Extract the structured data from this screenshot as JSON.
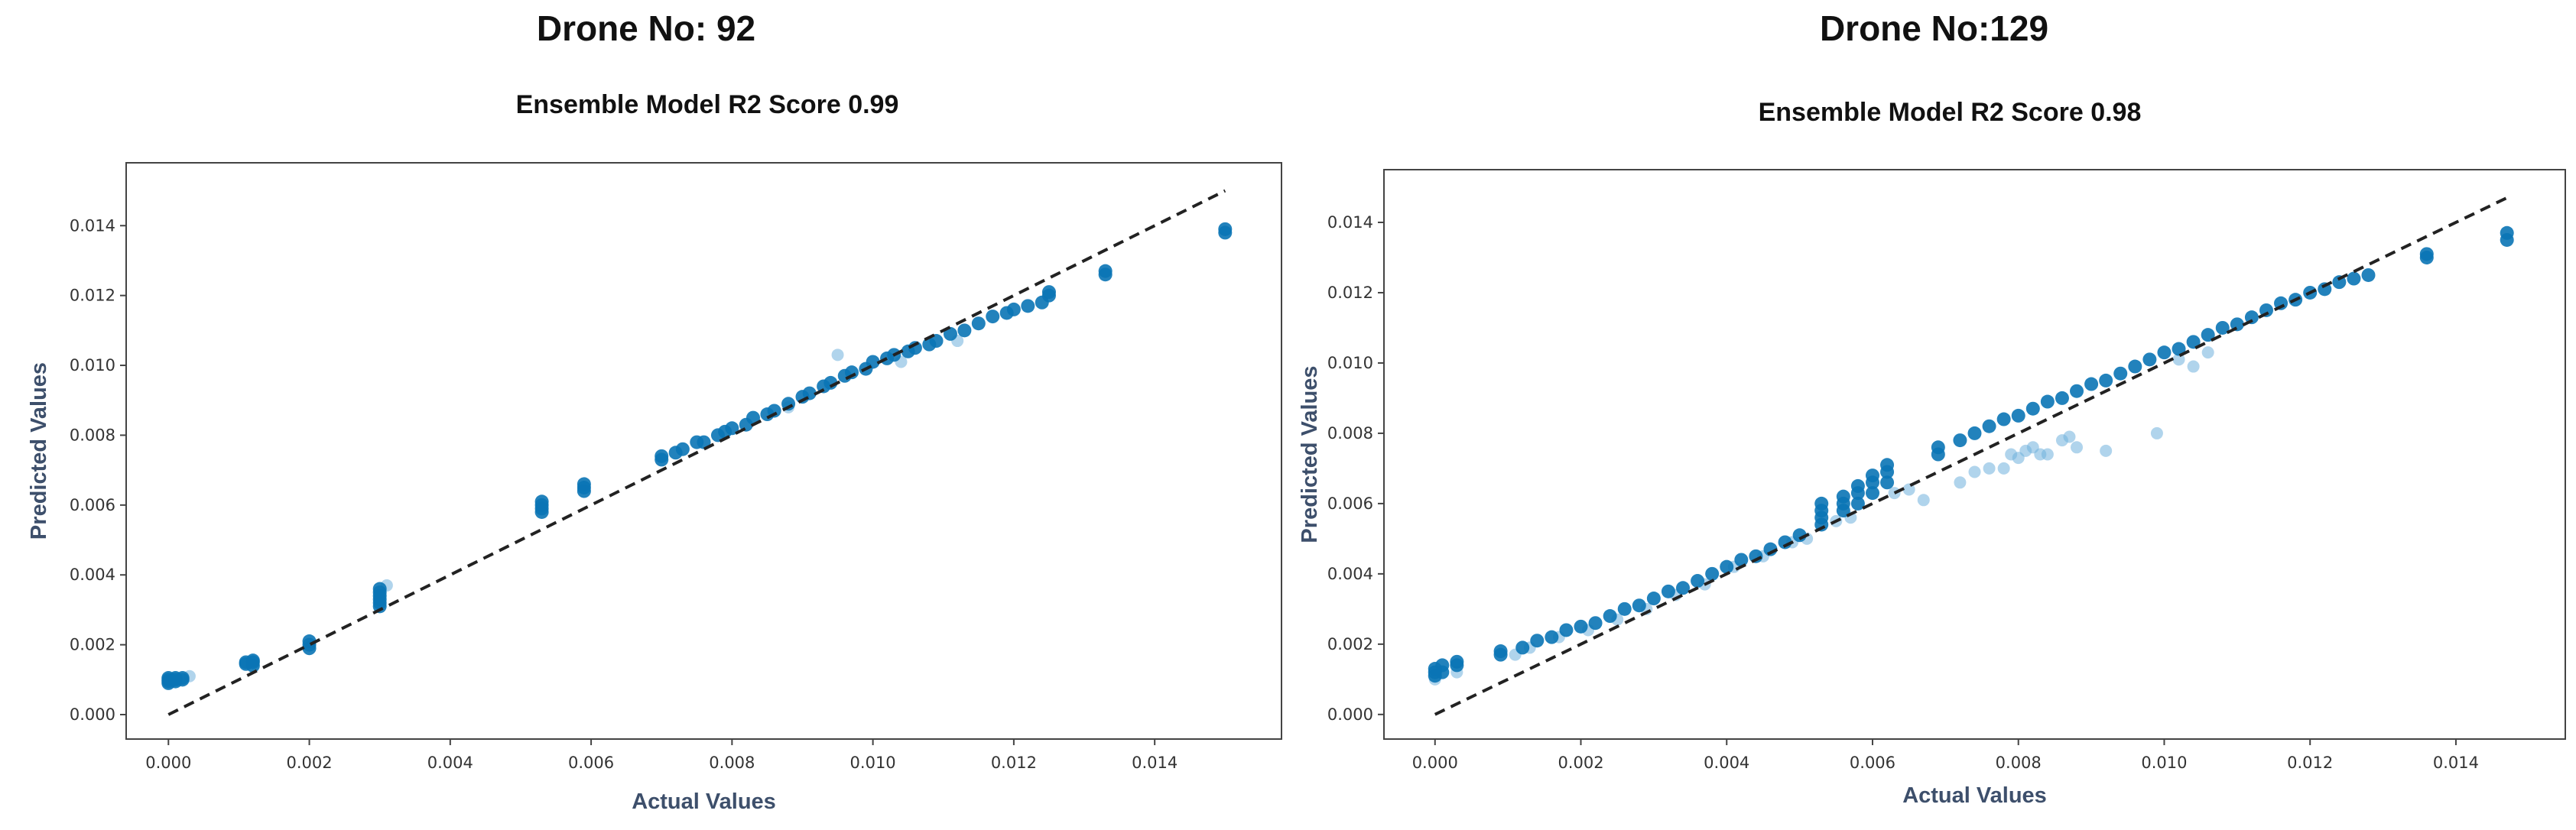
{
  "chart_data": [
    {
      "type": "scatter",
      "heading": "Drone No: 92",
      "title": "Ensemble Model R2 Score 0.99",
      "xlabel": "Actual Values",
      "ylabel": "Predicted Values",
      "xlim": [
        -0.0006,
        0.0158
      ],
      "ylim": [
        -0.0007,
        0.0158
      ],
      "xticks": [
        "0.000",
        "0.002",
        "0.004",
        "0.006",
        "0.008",
        "0.010",
        "0.012",
        "0.014"
      ],
      "yticks": [
        "0.000",
        "0.002",
        "0.004",
        "0.006",
        "0.008",
        "0.010",
        "0.012",
        "0.014"
      ],
      "point_color": "#0a74b5",
      "line_color": "#222222",
      "reference_line": {
        "x": [
          0.0,
          0.015
        ],
        "y": [
          0.0,
          0.015
        ],
        "style": "dashed"
      },
      "series": [
        {
          "points": [
            [
              0.0,
              0.0009
            ],
            [
              0.0,
              0.00095
            ],
            [
              0.0,
              0.001
            ],
            [
              0.0,
              0.00105
            ],
            [
              0.0001,
              0.00095
            ],
            [
              0.0001,
              0.001
            ],
            [
              0.0001,
              0.00105
            ],
            [
              0.0002,
              0.001
            ],
            [
              0.0002,
              0.00105
            ],
            [
              0.0011,
              0.00145
            ],
            [
              0.0011,
              0.0015
            ],
            [
              0.0012,
              0.0015
            ],
            [
              0.0012,
              0.0014
            ],
            [
              0.0012,
              0.00155
            ],
            [
              0.002,
              0.0019
            ],
            [
              0.002,
              0.002
            ],
            [
              0.002,
              0.0021
            ],
            [
              0.003,
              0.0031
            ],
            [
              0.003,
              0.0032
            ],
            [
              0.003,
              0.0033
            ],
            [
              0.003,
              0.0034
            ],
            [
              0.003,
              0.0035
            ],
            [
              0.003,
              0.0036
            ],
            [
              0.0053,
              0.0058
            ],
            [
              0.0053,
              0.0059
            ],
            [
              0.0053,
              0.006
            ],
            [
              0.0053,
              0.0061
            ],
            [
              0.0059,
              0.0064
            ],
            [
              0.0059,
              0.0065
            ],
            [
              0.0059,
              0.0066
            ],
            [
              0.007,
              0.0073
            ],
            [
              0.007,
              0.0074
            ],
            [
              0.0072,
              0.0075
            ],
            [
              0.0073,
              0.0076
            ],
            [
              0.0075,
              0.0078
            ],
            [
              0.0076,
              0.0078
            ],
            [
              0.0078,
              0.008
            ],
            [
              0.0079,
              0.0081
            ],
            [
              0.008,
              0.0082
            ],
            [
              0.0082,
              0.0083
            ],
            [
              0.0083,
              0.0085
            ],
            [
              0.0085,
              0.0086
            ],
            [
              0.0086,
              0.0087
            ],
            [
              0.0088,
              0.0089
            ],
            [
              0.009,
              0.0091
            ],
            [
              0.0091,
              0.0092
            ],
            [
              0.0093,
              0.0094
            ],
            [
              0.0094,
              0.0095
            ],
            [
              0.0096,
              0.0097
            ],
            [
              0.0097,
              0.0098
            ],
            [
              0.0099,
              0.0099
            ],
            [
              0.01,
              0.0101
            ],
            [
              0.0102,
              0.0102
            ],
            [
              0.0103,
              0.0103
            ],
            [
              0.0105,
              0.0104
            ],
            [
              0.0106,
              0.0105
            ],
            [
              0.0108,
              0.0106
            ],
            [
              0.0109,
              0.0107
            ],
            [
              0.0111,
              0.0109
            ],
            [
              0.0113,
              0.011
            ],
            [
              0.0115,
              0.0112
            ],
            [
              0.0117,
              0.0114
            ],
            [
              0.0119,
              0.0115
            ],
            [
              0.012,
              0.0116
            ],
            [
              0.0122,
              0.0117
            ],
            [
              0.0124,
              0.0118
            ],
            [
              0.0125,
              0.012
            ],
            [
              0.0125,
              0.0121
            ],
            [
              0.0133,
              0.0126
            ],
            [
              0.0133,
              0.0127
            ],
            [
              0.015,
              0.0138
            ],
            [
              0.015,
              0.0139
            ]
          ],
          "light_points": [
            [
              0.0095,
              0.0103
            ],
            [
              0.0003,
              0.0011
            ],
            [
              0.0112,
              0.0107
            ],
            [
              0.0104,
              0.0101
            ],
            [
              0.0088,
              0.0088
            ],
            [
              0.0031,
              0.0037
            ]
          ]
        }
      ]
    },
    {
      "type": "scatter",
      "heading": "Drone No:129",
      "title": "Ensemble Model R2 Score 0.98",
      "xlabel": "Actual Values",
      "ylabel": "Predicted Values",
      "xlim": [
        -0.0007,
        0.0155
      ],
      "ylim": [
        -0.0007,
        0.0155
      ],
      "xticks": [
        "0.000",
        "0.002",
        "0.004",
        "0.006",
        "0.008",
        "0.010",
        "0.012",
        "0.014"
      ],
      "yticks": [
        "0.000",
        "0.002",
        "0.004",
        "0.006",
        "0.008",
        "0.010",
        "0.012",
        "0.014"
      ],
      "point_color": "#0a74b5",
      "line_color": "#222222",
      "reference_line": {
        "x": [
          0.0,
          0.0147
        ],
        "y": [
          0.0,
          0.0147
        ],
        "style": "dashed"
      },
      "series": [
        {
          "points": [
            [
              0.0,
              0.0011
            ],
            [
              0.0,
              0.0012
            ],
            [
              0.0,
              0.0013
            ],
            [
              0.0001,
              0.0012
            ],
            [
              0.0001,
              0.0014
            ],
            [
              0.0003,
              0.0014
            ],
            [
              0.0003,
              0.0015
            ],
            [
              0.0009,
              0.0017
            ],
            [
              0.0009,
              0.0018
            ],
            [
              0.0012,
              0.0019
            ],
            [
              0.0014,
              0.0021
            ],
            [
              0.0016,
              0.0022
            ],
            [
              0.0018,
              0.0024
            ],
            [
              0.002,
              0.0025
            ],
            [
              0.0022,
              0.0026
            ],
            [
              0.0024,
              0.0028
            ],
            [
              0.0026,
              0.003
            ],
            [
              0.0028,
              0.0031
            ],
            [
              0.003,
              0.0033
            ],
            [
              0.0032,
              0.0035
            ],
            [
              0.0034,
              0.0036
            ],
            [
              0.0036,
              0.0038
            ],
            [
              0.0038,
              0.004
            ],
            [
              0.004,
              0.0042
            ],
            [
              0.0042,
              0.0044
            ],
            [
              0.0044,
              0.0045
            ],
            [
              0.0046,
              0.0047
            ],
            [
              0.0048,
              0.0049
            ],
            [
              0.005,
              0.0051
            ],
            [
              0.0053,
              0.0054
            ],
            [
              0.0053,
              0.0056
            ],
            [
              0.0053,
              0.0058
            ],
            [
              0.0053,
              0.006
            ],
            [
              0.0056,
              0.0058
            ],
            [
              0.0056,
              0.006
            ],
            [
              0.0056,
              0.0062
            ],
            [
              0.0058,
              0.006
            ],
            [
              0.0058,
              0.0063
            ],
            [
              0.0058,
              0.0065
            ],
            [
              0.006,
              0.0063
            ],
            [
              0.006,
              0.0066
            ],
            [
              0.006,
              0.0068
            ],
            [
              0.0062,
              0.0066
            ],
            [
              0.0062,
              0.0069
            ],
            [
              0.0062,
              0.0071
            ],
            [
              0.0069,
              0.0074
            ],
            [
              0.0069,
              0.0076
            ],
            [
              0.0072,
              0.0078
            ],
            [
              0.0074,
              0.008
            ],
            [
              0.0076,
              0.0082
            ],
            [
              0.0078,
              0.0084
            ],
            [
              0.008,
              0.0085
            ],
            [
              0.0082,
              0.0087
            ],
            [
              0.0084,
              0.0089
            ],
            [
              0.0086,
              0.009
            ],
            [
              0.0088,
              0.0092
            ],
            [
              0.009,
              0.0094
            ],
            [
              0.0092,
              0.0095
            ],
            [
              0.0094,
              0.0097
            ],
            [
              0.0096,
              0.0099
            ],
            [
              0.0098,
              0.0101
            ],
            [
              0.01,
              0.0103
            ],
            [
              0.0102,
              0.0104
            ],
            [
              0.0104,
              0.0106
            ],
            [
              0.0106,
              0.0108
            ],
            [
              0.0108,
              0.011
            ],
            [
              0.011,
              0.0111
            ],
            [
              0.0112,
              0.0113
            ],
            [
              0.0114,
              0.0115
            ],
            [
              0.0116,
              0.0117
            ],
            [
              0.0118,
              0.0118
            ],
            [
              0.012,
              0.012
            ],
            [
              0.0122,
              0.0121
            ],
            [
              0.0124,
              0.0123
            ],
            [
              0.0126,
              0.0124
            ],
            [
              0.0128,
              0.0125
            ],
            [
              0.0136,
              0.013
            ],
            [
              0.0136,
              0.0131
            ],
            [
              0.0147,
              0.0135
            ],
            [
              0.0147,
              0.0137
            ]
          ],
          "light_points": [
            [
              0.0,
              0.001
            ],
            [
              0.0003,
              0.0012
            ],
            [
              0.0011,
              0.0017
            ],
            [
              0.0013,
              0.0019
            ],
            [
              0.0017,
              0.0022
            ],
            [
              0.0021,
              0.0024
            ],
            [
              0.0025,
              0.0027
            ],
            [
              0.0029,
              0.003
            ],
            [
              0.0033,
              0.0034
            ],
            [
              0.0037,
              0.0037
            ],
            [
              0.0041,
              0.0042
            ],
            [
              0.0045,
              0.0045
            ],
            [
              0.0049,
              0.0049
            ],
            [
              0.0051,
              0.005
            ],
            [
              0.0055,
              0.0055
            ],
            [
              0.0057,
              0.0056
            ],
            [
              0.0063,
              0.0063
            ],
            [
              0.0065,
              0.0064
            ],
            [
              0.0067,
              0.0061
            ],
            [
              0.0072,
              0.0066
            ],
            [
              0.0074,
              0.0069
            ],
            [
              0.0076,
              0.007
            ],
            [
              0.0078,
              0.007
            ],
            [
              0.0079,
              0.0074
            ],
            [
              0.008,
              0.0073
            ],
            [
              0.0081,
              0.0075
            ],
            [
              0.0082,
              0.0076
            ],
            [
              0.0083,
              0.0074
            ],
            [
              0.0084,
              0.0074
            ],
            [
              0.0086,
              0.0078
            ],
            [
              0.0087,
              0.0079
            ],
            [
              0.0088,
              0.0076
            ],
            [
              0.0092,
              0.0075
            ],
            [
              0.0099,
              0.008
            ],
            [
              0.0104,
              0.0099
            ],
            [
              0.0106,
              0.0103
            ],
            [
              0.0102,
              0.0101
            ]
          ]
        }
      ]
    }
  ]
}
